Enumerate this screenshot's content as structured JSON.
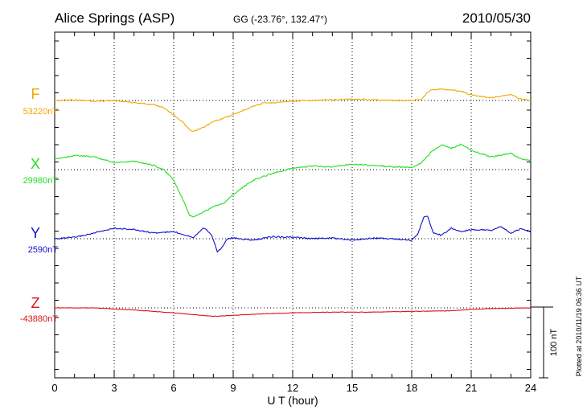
{
  "chart_data": {
    "type": "line",
    "title": "Alice Springs (ASP)",
    "subtitle": "GG (-23.76°, 132.47°)",
    "date": "2010/05/30",
    "xlabel": "U T (hour)",
    "xlim": [
      0,
      24
    ],
    "x_ticks": [
      "0",
      "3",
      "6",
      "9",
      "12",
      "15",
      "18",
      "21",
      "24"
    ],
    "scale_label": "100 nT",
    "plotted_note": "Plotted at 2010/11/19 06:36 UT",
    "series": [
      {
        "name": "F",
        "baseline_label": "53220nT",
        "color": "#f0a800",
        "baseline_nT": 53220,
        "points": [
          [
            0,
            53220
          ],
          [
            1,
            53221
          ],
          [
            2,
            53219
          ],
          [
            3,
            53220
          ],
          [
            4,
            53217
          ],
          [
            5,
            53214
          ],
          [
            5.5,
            53210
          ],
          [
            6,
            53200
          ],
          [
            6.5,
            53188
          ],
          [
            6.8,
            53178
          ],
          [
            7,
            53176
          ],
          [
            7.5,
            53182
          ],
          [
            8,
            53190
          ],
          [
            8.5,
            53195
          ],
          [
            9,
            53200
          ],
          [
            9.5,
            53206
          ],
          [
            10,
            53212
          ],
          [
            10.5,
            53216
          ],
          [
            11,
            53217
          ],
          [
            12,
            53219
          ],
          [
            13,
            53220
          ],
          [
            14,
            53221
          ],
          [
            15,
            53222
          ],
          [
            16,
            53221
          ],
          [
            17,
            53220
          ],
          [
            18,
            53220
          ],
          [
            18.5,
            53222
          ],
          [
            18.8,
            53232
          ],
          [
            19,
            53235
          ],
          [
            19.5,
            53236
          ],
          [
            20,
            53235
          ],
          [
            20.5,
            53233
          ],
          [
            21,
            53228
          ],
          [
            22,
            53224
          ],
          [
            22.5,
            53226
          ],
          [
            23,
            53228
          ],
          [
            23.5,
            53222
          ],
          [
            24,
            53220
          ]
        ]
      },
      {
        "name": "X",
        "baseline_label": "29980nT",
        "color": "#22dd22",
        "baseline_nT": 29980,
        "points": [
          [
            0,
            29995
          ],
          [
            1,
            30000
          ],
          [
            2,
            29998
          ],
          [
            3,
            29990
          ],
          [
            4,
            29992
          ],
          [
            5,
            29986
          ],
          [
            5.5,
            29980
          ],
          [
            6,
            29965
          ],
          [
            6.5,
            29935
          ],
          [
            6.8,
            29915
          ],
          [
            7,
            29913
          ],
          [
            7.5,
            29920
          ],
          [
            8,
            29928
          ],
          [
            8.5,
            29932
          ],
          [
            9,
            29945
          ],
          [
            9.5,
            29955
          ],
          [
            10,
            29965
          ],
          [
            10.5,
            29970
          ],
          [
            11,
            29975
          ],
          [
            12,
            29982
          ],
          [
            13,
            29985
          ],
          [
            14,
            29984
          ],
          [
            15,
            29988
          ],
          [
            16,
            29986
          ],
          [
            17,
            29984
          ],
          [
            18,
            29983
          ],
          [
            18.5,
            29990
          ],
          [
            19,
            30005
          ],
          [
            19.5,
            30015
          ],
          [
            20,
            30010
          ],
          [
            20.5,
            30016
          ],
          [
            21,
            30007
          ],
          [
            22,
            29998
          ],
          [
            23,
            30003
          ],
          [
            23.5,
            29995
          ],
          [
            24,
            29993
          ]
        ]
      },
      {
        "name": "Y",
        "baseline_label": "2590nT",
        "color": "#1111cc",
        "baseline_nT": 2590,
        "points": [
          [
            0,
            2590
          ],
          [
            1,
            2592
          ],
          [
            2,
            2598
          ],
          [
            3,
            2605
          ],
          [
            4,
            2603
          ],
          [
            5,
            2598
          ],
          [
            6,
            2600
          ],
          [
            6.5,
            2596
          ],
          [
            7,
            2592
          ],
          [
            7.5,
            2606
          ],
          [
            7.9,
            2596
          ],
          [
            8.2,
            2572
          ],
          [
            8.4,
            2576
          ],
          [
            8.7,
            2590
          ],
          [
            9,
            2591
          ],
          [
            10,
            2588
          ],
          [
            11,
            2593
          ],
          [
            12,
            2592
          ],
          [
            13,
            2590
          ],
          [
            14,
            2591
          ],
          [
            15,
            2588
          ],
          [
            16,
            2591
          ],
          [
            17,
            2590
          ],
          [
            18,
            2588
          ],
          [
            18.3,
            2596
          ],
          [
            18.6,
            2620
          ],
          [
            18.8,
            2622
          ],
          [
            19.1,
            2598
          ],
          [
            19.5,
            2595
          ],
          [
            20,
            2605
          ],
          [
            20.5,
            2600
          ],
          [
            21,
            2603
          ],
          [
            22,
            2602
          ],
          [
            22.5,
            2607
          ],
          [
            23,
            2598
          ],
          [
            23.5,
            2604
          ],
          [
            24,
            2600
          ]
        ]
      },
      {
        "name": "Z",
        "baseline_label": "-43880nT",
        "color": "#dd1111",
        "baseline_nT": -43880,
        "points": [
          [
            0,
            -43880
          ],
          [
            2,
            -43880
          ],
          [
            4,
            -43883
          ],
          [
            6,
            -43887
          ],
          [
            8,
            -43892
          ],
          [
            10,
            -43889
          ],
          [
            12,
            -43887
          ],
          [
            14,
            -43886
          ],
          [
            16,
            -43886
          ],
          [
            18,
            -43885
          ],
          [
            20,
            -43884
          ],
          [
            21,
            -43882
          ],
          [
            22,
            -43881
          ],
          [
            24,
            -43880
          ]
        ]
      }
    ]
  }
}
